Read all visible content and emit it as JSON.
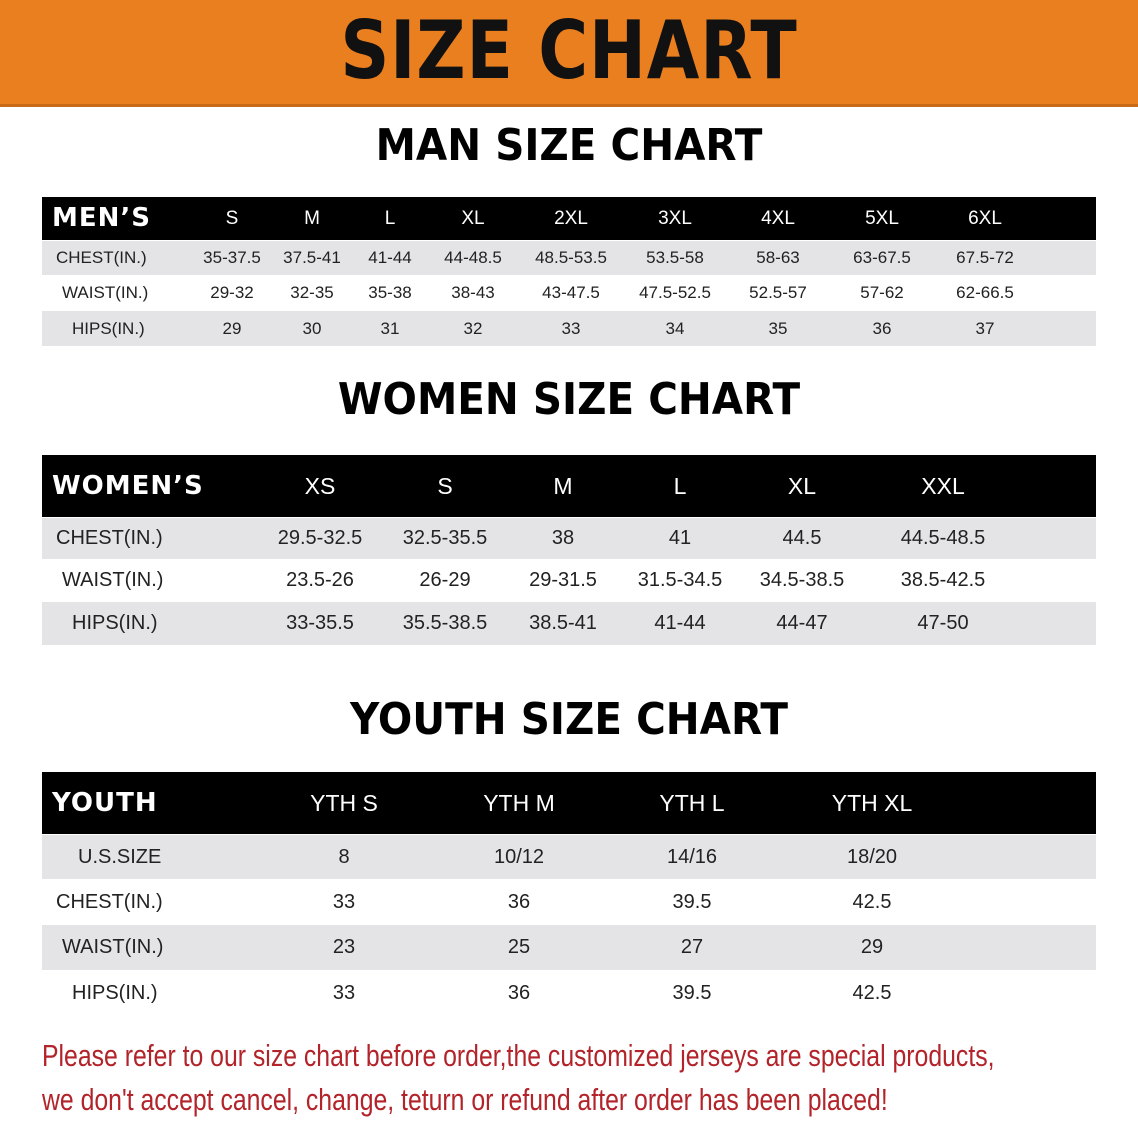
{
  "title": "SIZE CHART",
  "colors": {
    "banner": "#e97f1f",
    "header_bg": "#000000",
    "row_shade": "#e4e4e6",
    "note_text": "#b2232a"
  },
  "men": {
    "section_title": "MAN SIZE CHART",
    "header_label": "MEN’S",
    "sizes": [
      "S",
      "M",
      "L",
      "XL",
      "2XL",
      "3XL",
      "4XL",
      "5XL",
      "6XL"
    ],
    "rows": [
      {
        "label": "CHEST(IN.)",
        "values": [
          "35-37.5",
          "37.5-41",
          "41-44",
          "44-48.5",
          "48.5-53.5",
          "53.5-58",
          "58-63",
          "63-67.5",
          "67.5-72"
        ]
      },
      {
        "label": "WAIST(IN.)",
        "values": [
          "29-32",
          "32-35",
          "35-38",
          "38-43",
          "43-47.5",
          "47.5-52.5",
          "52.5-57",
          "57-62",
          "62-66.5"
        ]
      },
      {
        "label": "HIPS(IN.)",
        "values": [
          "29",
          "30",
          "31",
          "32",
          "33",
          "34",
          "35",
          "36",
          "37"
        ]
      }
    ]
  },
  "women": {
    "section_title": "WOMEN SIZE CHART",
    "header_label": "WOMEN’S",
    "sizes": [
      "XS",
      "S",
      "M",
      "L",
      "XL",
      "XXL"
    ],
    "rows": [
      {
        "label": "CHEST(IN.)",
        "values": [
          "29.5-32.5",
          "32.5-35.5",
          "38",
          "41",
          "44.5",
          "44.5-48.5"
        ]
      },
      {
        "label": "WAIST(IN.)",
        "values": [
          "23.5-26",
          "26-29",
          "29-31.5",
          "31.5-34.5",
          "34.5-38.5",
          "38.5-42.5"
        ]
      },
      {
        "label": "HIPS(IN.)",
        "values": [
          "33-35.5",
          "35.5-38.5",
          "38.5-41",
          "41-44",
          "44-47",
          "47-50"
        ]
      }
    ]
  },
  "youth": {
    "section_title": "YOUTH SIZE CHART",
    "header_label": "YOUTH",
    "sizes": [
      "YTH S",
      "YTH M",
      "YTH L",
      "YTH XL"
    ],
    "rows": [
      {
        "label": "U.S.SIZE",
        "values": [
          "8",
          "10/12",
          "14/16",
          "18/20"
        ]
      },
      {
        "label": "CHEST(IN.)",
        "values": [
          "33",
          "36",
          "39.5",
          "42.5"
        ]
      },
      {
        "label": "WAIST(IN.)",
        "values": [
          "23",
          "25",
          "27",
          "29"
        ]
      },
      {
        "label": "HIPS(IN.)",
        "values": [
          "33",
          "36",
          "39.5",
          "42.5"
        ]
      }
    ]
  },
  "note": {
    "line1": "Please refer to our size chart before order,the customized jerseys are special products,",
    "line2": "we don't accept cancel, change, teturn or refund after order has been placed!"
  }
}
